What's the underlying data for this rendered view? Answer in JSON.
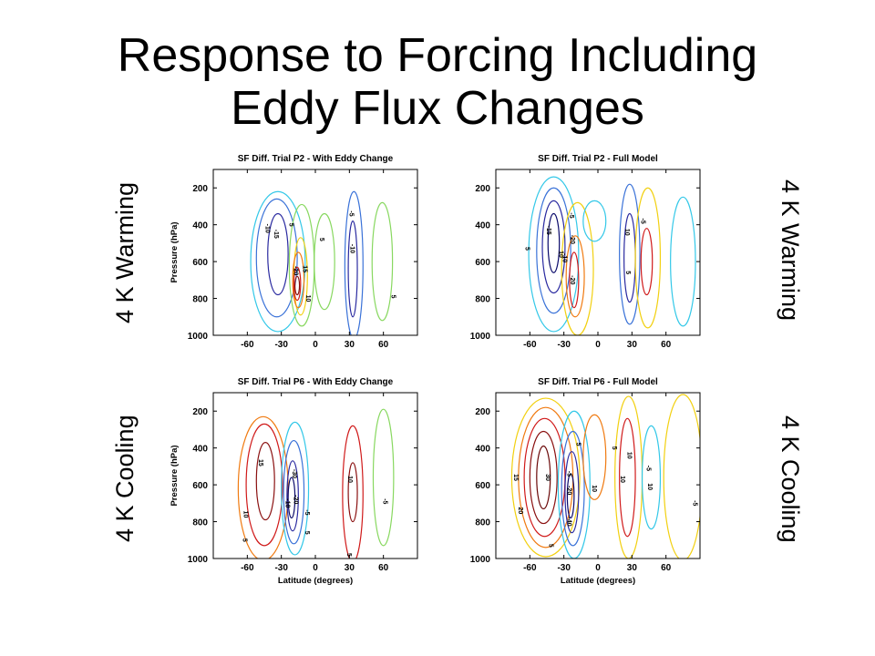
{
  "slide": {
    "title_line1": "Response to Forcing Including",
    "title_line2": "Eddy Flux Changes"
  },
  "row_labels": {
    "top_left": "4 K Warming",
    "top_right": "4 K Warming",
    "bottom_left": "4 K Cooling",
    "bottom_right": "4 K Cooling"
  },
  "colors": {
    "level_-40": "#0a0a6a",
    "level_-20": "#2a2aa0",
    "level_-15": "#2a2aa0",
    "level_-10": "#3a72d8",
    "level_-5": "#33c8e8",
    "level_5": "#88d860",
    "level_10": "#f2d010",
    "level_15": "#f07a10",
    "level_20": "#d01a1a",
    "level_30": "#8a1010",
    "level_40": "#6a0808",
    "level_50": "#500505"
  },
  "chart_data": [
    {
      "type": "contour",
      "title": "SF Diff. Trial P2 - With Eddy Change",
      "xlabel": "",
      "ylabel": "Pressure (hPa)",
      "xlim": [
        -90,
        90
      ],
      "ylim": [
        1000,
        100
      ],
      "xticks": [
        "-60",
        "-30",
        "0",
        "30",
        "60"
      ],
      "xtick_values": [
        -60,
        -30,
        0,
        30,
        60
      ],
      "yticks": [
        "200",
        "400",
        "600",
        "800",
        "1000"
      ],
      "ytick_values": [
        200,
        400,
        600,
        800,
        1000
      ],
      "contours": [
        {
          "level": -5,
          "cx": -33,
          "cy": 600,
          "rx": 24,
          "ry": 380,
          "color": "#33c8e8"
        },
        {
          "level": -10,
          "cx": -34,
          "cy": 580,
          "rx": 18,
          "ry": 320,
          "color": "#3a72d8"
        },
        {
          "level": -15,
          "cx": -33,
          "cy": 560,
          "rx": 9,
          "ry": 220,
          "color": "#2a2aa0"
        },
        {
          "level": 5,
          "cx": -12,
          "cy": 620,
          "rx": 11,
          "ry": 330,
          "color": "#88d860"
        },
        {
          "level": 10,
          "cx": -13,
          "cy": 680,
          "rx": 6,
          "ry": 210,
          "color": "#f2d010"
        },
        {
          "level": 15,
          "cx": -15,
          "cy": 700,
          "rx": 5,
          "ry": 150,
          "color": "#f07a10"
        },
        {
          "level": 20,
          "cx": -16,
          "cy": 720,
          "rx": 3,
          "ry": 90,
          "color": "#d01a1a"
        },
        {
          "level": 30,
          "cx": -16,
          "cy": 730,
          "rx": 2,
          "ry": 50,
          "color": "#8a1010"
        },
        {
          "level": 5,
          "cx": 8,
          "cy": 600,
          "rx": 9,
          "ry": 260,
          "color": "#88d860"
        },
        {
          "level": -5,
          "cx": 34,
          "cy": 620,
          "rx": 8,
          "ry": 400,
          "color": "#3a72d8"
        },
        {
          "level": -10,
          "cx": 33,
          "cy": 640,
          "rx": 4,
          "ry": 260,
          "color": "#2a2aa0"
        },
        {
          "level": 5,
          "cx": 59,
          "cy": 600,
          "rx": 9,
          "ry": 320,
          "color": "#88d860"
        }
      ],
      "labels": [
        {
          "text": "-10",
          "x": -44,
          "y": 420
        },
        {
          "text": "-15",
          "x": -36,
          "y": 450
        },
        {
          "text": "5",
          "x": -23,
          "y": 400
        },
        {
          "text": "-20",
          "x": -19,
          "y": 650
        },
        {
          "text": "15",
          "x": -11,
          "y": 640
        },
        {
          "text": "10",
          "x": -8,
          "y": 800
        },
        {
          "text": "5",
          "x": 4,
          "y": 480
        },
        {
          "text": "-5",
          "x": 30,
          "y": 340
        },
        {
          "text": "-10",
          "x": 31,
          "y": 530
        },
        {
          "text": "5",
          "x": 67,
          "y": 790
        }
      ]
    },
    {
      "type": "contour",
      "title": "SF Diff. Trial P2 - Full Model",
      "xlabel": "",
      "ylabel": "",
      "xlim": [
        -90,
        90
      ],
      "ylim": [
        1000,
        100
      ],
      "xticks": [
        "-60",
        "-30",
        "0",
        "30",
        "60"
      ],
      "xtick_values": [
        -60,
        -30,
        0,
        30,
        60
      ],
      "yticks": [
        "200",
        "400",
        "600",
        "800",
        "1000"
      ],
      "yick_note": "",
      "ytick_values": [
        200,
        400,
        600,
        800,
        1000
      ],
      "contours": [
        {
          "level": -5,
          "cx": -39,
          "cy": 560,
          "rx": 22,
          "ry": 420,
          "color": "#33c8e8"
        },
        {
          "level": -10,
          "cx": -39,
          "cy": 540,
          "rx": 15,
          "ry": 340,
          "color": "#3a72d8"
        },
        {
          "level": -15,
          "cx": -39,
          "cy": 520,
          "rx": 10,
          "ry": 250,
          "color": "#2a2aa0"
        },
        {
          "level": -20,
          "cx": -39,
          "cy": 500,
          "rx": 5,
          "ry": 160,
          "color": "#0a0a6a"
        },
        {
          "level": 5,
          "cx": -18,
          "cy": 640,
          "rx": 14,
          "ry": 360,
          "color": "#f2d010"
        },
        {
          "level": 10,
          "cx": -20,
          "cy": 680,
          "rx": 8,
          "ry": 220,
          "color": "#f07a10"
        },
        {
          "level": 20,
          "cx": -21,
          "cy": 700,
          "rx": 4,
          "ry": 150,
          "color": "#d01a1a"
        },
        {
          "level": 5,
          "cx": -3,
          "cy": 380,
          "rx": 10,
          "ry": 110,
          "color": "#33c8e8"
        },
        {
          "level": -5,
          "cx": 28,
          "cy": 560,
          "rx": 9,
          "ry": 380,
          "color": "#3a72d8"
        },
        {
          "level": -10,
          "cx": 28,
          "cy": 580,
          "rx": 5,
          "ry": 240,
          "color": "#2a2aa0"
        },
        {
          "level": 5,
          "cx": 44,
          "cy": 580,
          "rx": 11,
          "ry": 380,
          "color": "#f2d010"
        },
        {
          "level": 10,
          "cx": 43,
          "cy": 600,
          "rx": 5,
          "ry": 180,
          "color": "#d01a1a"
        },
        {
          "level": -5,
          "cx": 75,
          "cy": 600,
          "rx": 11,
          "ry": 350,
          "color": "#33c8e8"
        }
      ],
      "labels": [
        {
          "text": "5",
          "x": -64,
          "y": 530
        },
        {
          "text": "-15",
          "x": -45,
          "y": 430
        },
        {
          "text": "10",
          "x": -34,
          "y": 560
        },
        {
          "text": "-10",
          "x": -31,
          "y": 580
        },
        {
          "text": "-5",
          "x": -25,
          "y": 350
        },
        {
          "text": "-20",
          "x": -24,
          "y": 480
        },
        {
          "text": "-20",
          "x": -24,
          "y": 700
        },
        {
          "text": "10",
          "x": 24,
          "y": 440
        },
        {
          "text": "5",
          "x": 25,
          "y": 660
        },
        {
          "text": "-5",
          "x": 38,
          "y": 380
        }
      ]
    },
    {
      "type": "contour",
      "title": "SF Diff. Trial P6 - With Eddy Change",
      "xlabel": "Latitude (degrees)",
      "ylabel": "Pressure (hPa)",
      "xlim": [
        -90,
        90
      ],
      "ylim": [
        1000,
        100
      ],
      "xticks": [
        "-60",
        "-30",
        "0",
        "30",
        "60"
      ],
      "xtick_values": [
        -60,
        -30,
        0,
        30,
        60
      ],
      "yticks": [
        "200",
        "400",
        "600",
        "800",
        "1000"
      ],
      "ytick_values": [
        200,
        400,
        600,
        800,
        1000
      ],
      "contours": [
        {
          "level": 5,
          "cx": -46,
          "cy": 620,
          "rx": 22,
          "ry": 390,
          "color": "#f07a10"
        },
        {
          "level": 10,
          "cx": -45,
          "cy": 600,
          "rx": 16,
          "ry": 330,
          "color": "#d01a1a"
        },
        {
          "level": 15,
          "cx": -44,
          "cy": 580,
          "rx": 8,
          "ry": 210,
          "color": "#8a1010"
        },
        {
          "level": -5,
          "cx": -18,
          "cy": 620,
          "rx": 12,
          "ry": 360,
          "color": "#33c8e8"
        },
        {
          "level": -10,
          "cx": -19,
          "cy": 640,
          "rx": 9,
          "ry": 280,
          "color": "#3a72d8"
        },
        {
          "level": -20,
          "cx": -20,
          "cy": 660,
          "rx": 5,
          "ry": 190,
          "color": "#2a2aa0"
        },
        {
          "level": -30,
          "cx": -21,
          "cy": 670,
          "rx": 3,
          "ry": 110,
          "color": "#0a0a6a"
        },
        {
          "level": 5,
          "cx": 33,
          "cy": 650,
          "rx": 9,
          "ry": 370,
          "color": "#d01a1a"
        },
        {
          "level": 10,
          "cx": 33,
          "cy": 640,
          "rx": 4,
          "ry": 160,
          "color": "#8a1010"
        },
        {
          "level": -5,
          "cx": 60,
          "cy": 560,
          "rx": 9,
          "ry": 370,
          "color": "#88d860"
        }
      ],
      "labels": [
        {
          "text": "15",
          "x": -50,
          "y": 480
        },
        {
          "text": "10",
          "x": -63,
          "y": 760
        },
        {
          "text": "5",
          "x": -64,
          "y": 900
        },
        {
          "text": "-30",
          "x": -20,
          "y": 540
        },
        {
          "text": "-20",
          "x": -19,
          "y": 680
        },
        {
          "text": "-10",
          "x": -26,
          "y": 700
        },
        {
          "text": "-5",
          "x": -9,
          "y": 750
        },
        {
          "text": "5",
          "x": -9,
          "y": 860
        },
        {
          "text": "10",
          "x": 29,
          "y": 570
        },
        {
          "text": "5",
          "x": 28,
          "y": 980
        },
        {
          "text": "-5",
          "x": 60,
          "y": 690
        }
      ]
    },
    {
      "type": "contour",
      "title": "SF Diff. Trial P6 - Full Model",
      "xlabel": "Latitude (degrees)",
      "ylabel": "",
      "xlim": [
        -90,
        90
      ],
      "ylim": [
        1000,
        100
      ],
      "xticks": [
        "-60",
        "-30",
        "0",
        "30",
        "60"
      ],
      "xtick_values": [
        -60,
        -30,
        0,
        30,
        60
      ],
      "yticks": [
        "200",
        "400",
        "600",
        "800",
        "1000"
      ],
      "ytick_values": [
        200,
        400,
        600,
        800,
        1000
      ],
      "contours": [
        {
          "level": 5,
          "cx": -46,
          "cy": 560,
          "rx": 30,
          "ry": 430,
          "color": "#f2d010"
        },
        {
          "level": 10,
          "cx": -46,
          "cy": 560,
          "rx": 24,
          "ry": 380,
          "color": "#f07a10"
        },
        {
          "level": 20,
          "cx": -47,
          "cy": 560,
          "rx": 18,
          "ry": 320,
          "color": "#d01a1a"
        },
        {
          "level": 30,
          "cx": -48,
          "cy": 560,
          "rx": 12,
          "ry": 250,
          "color": "#8a1010"
        },
        {
          "level": 40,
          "cx": -48,
          "cy": 560,
          "rx": 6,
          "ry": 170,
          "color": "#6a0808"
        },
        {
          "level": -5,
          "cx": -21,
          "cy": 600,
          "rx": 14,
          "ry": 400,
          "color": "#33c8e8"
        },
        {
          "level": -10,
          "cx": -22,
          "cy": 620,
          "rx": 10,
          "ry": 310,
          "color": "#3a72d8"
        },
        {
          "level": -20,
          "cx": -23,
          "cy": 640,
          "rx": 6,
          "ry": 220,
          "color": "#2a2aa0"
        },
        {
          "level": -40,
          "cx": -24,
          "cy": 660,
          "rx": 3,
          "ry": 120,
          "color": "#0a0a6a"
        },
        {
          "level": 5,
          "cx": -3,
          "cy": 450,
          "rx": 10,
          "ry": 230,
          "color": "#f07a10"
        },
        {
          "level": 5,
          "cx": 27,
          "cy": 560,
          "rx": 12,
          "ry": 440,
          "color": "#f2d010"
        },
        {
          "level": 10,
          "cx": 26,
          "cy": 560,
          "rx": 7,
          "ry": 320,
          "color": "#d01a1a"
        },
        {
          "level": -5,
          "cx": 47,
          "cy": 560,
          "rx": 8,
          "ry": 280,
          "color": "#33c8e8"
        },
        {
          "level": 5,
          "cx": 75,
          "cy": 560,
          "rx": 17,
          "ry": 450,
          "color": "#f2d010"
        }
      ],
      "labels": [
        {
          "text": "15",
          "x": -74,
          "y": 560
        },
        {
          "text": "20",
          "x": -70,
          "y": 740
        },
        {
          "text": "30",
          "x": -46,
          "y": 560
        },
        {
          "text": "5",
          "x": -43,
          "y": 930
        },
        {
          "text": "-5",
          "x": -27,
          "y": 540
        },
        {
          "text": "-20",
          "x": -27,
          "y": 630
        },
        {
          "text": "-40",
          "x": -27,
          "y": 800
        },
        {
          "text": "5",
          "x": -19,
          "y": 380
        },
        {
          "text": "10",
          "x": -5,
          "y": 620
        },
        {
          "text": "5",
          "x": 13,
          "y": 400
        },
        {
          "text": "10",
          "x": 20,
          "y": 570
        },
        {
          "text": "10",
          "x": 26,
          "y": 440
        },
        {
          "text": "-5",
          "x": 43,
          "y": 510
        },
        {
          "text": "10",
          "x": 44,
          "y": 610
        },
        {
          "text": "-5",
          "x": 84,
          "y": 700
        }
      ]
    }
  ]
}
